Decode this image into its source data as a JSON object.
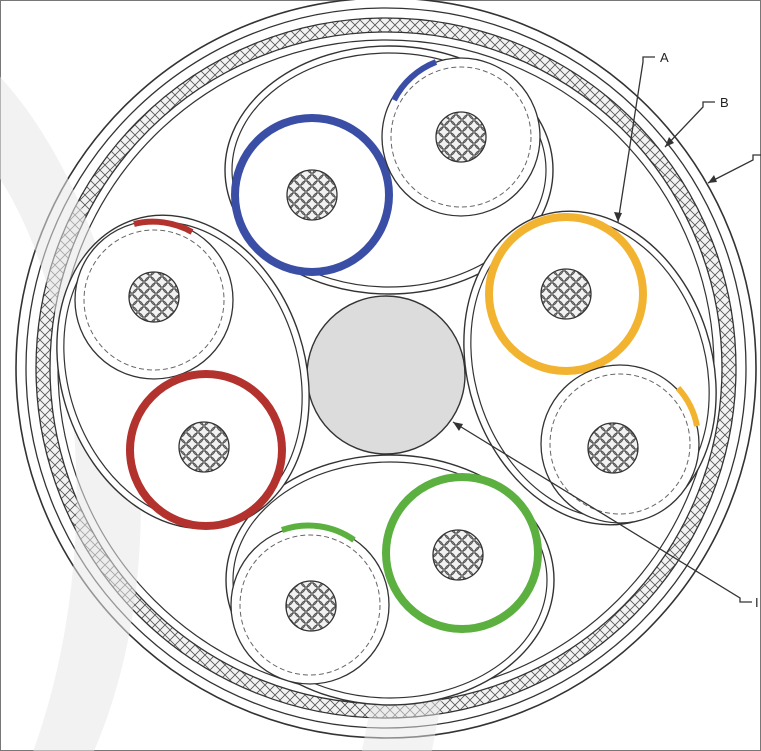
{
  "diagram": {
    "callouts": [
      {
        "id": "A",
        "label": "A"
      },
      {
        "id": "B",
        "label": "B"
      },
      {
        "id": "C",
        "label": ""
      },
      {
        "id": "I",
        "label": "I"
      }
    ],
    "colors": {
      "line": "#333333",
      "shield_fill": "#f3f3f3",
      "center_filler": "#dcdcdc",
      "conductor_fill": "#ededed",
      "blue": "#3a4ea6",
      "orange": "#f2b430",
      "red": "#b3322e",
      "green": "#5bb040",
      "watermark": "#e6e6e6"
    },
    "pairs": [
      {
        "name": "blue-pair",
        "color": "blue"
      },
      {
        "name": "orange-pair",
        "color": "orange"
      },
      {
        "name": "green-pair",
        "color": "green"
      },
      {
        "name": "red-pair",
        "color": "red"
      }
    ]
  }
}
